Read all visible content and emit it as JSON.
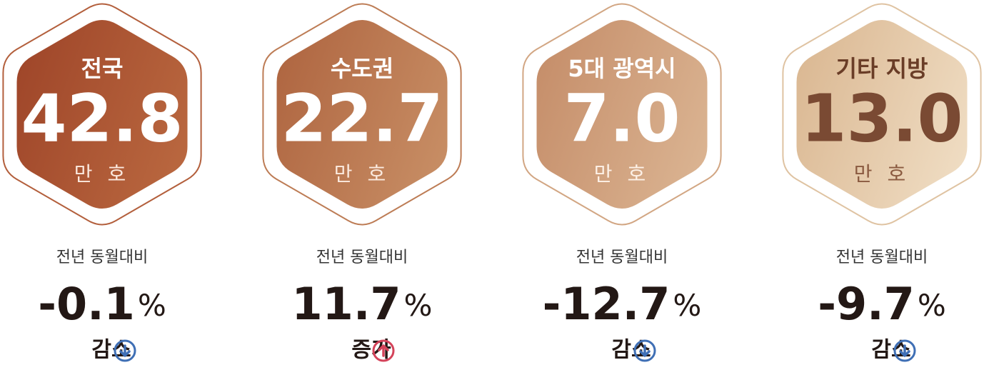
{
  "cards": [
    {
      "region": "전국",
      "value": "42.8",
      "unit": "만 호",
      "compare_label": "전년 동월대비",
      "change": "-0.1",
      "change_unit": "%",
      "direction": "감소"
    },
    {
      "region": "수도권",
      "value": "22.7",
      "unit": "만 호",
      "compare_label": "전년 동월대비",
      "change": "11.7",
      "change_unit": "%",
      "direction": "증가"
    },
    {
      "region": "5대 광역시",
      "value": "7.0",
      "unit": "만 호",
      "compare_label": "전년 동월대비",
      "change": "-12.7",
      "change_unit": "%",
      "direction": "감소"
    },
    {
      "region": "기타 지방",
      "value": "13.0",
      "unit": "만 호",
      "compare_label": "전년 동월대비",
      "change": "-9.7",
      "change_unit": "%",
      "direction": "감소"
    }
  ]
}
